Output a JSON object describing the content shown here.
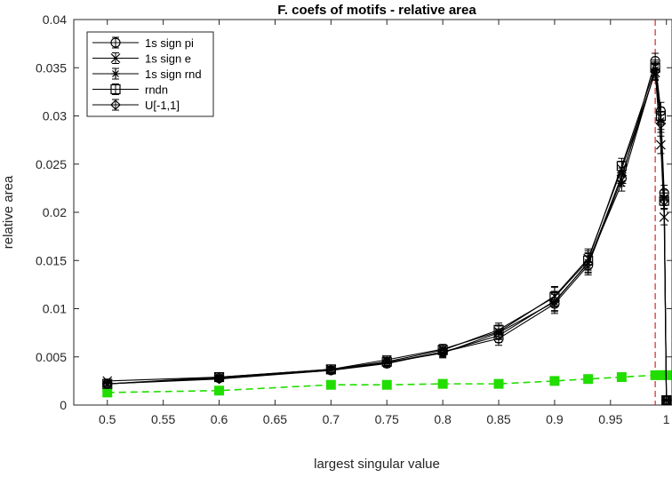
{
  "chart_data": {
    "type": "line",
    "title": "F. coefs of motifs - relative area",
    "xlabel": "largest singular value",
    "ylabel": "relative area",
    "xlim": [
      0.47,
      1.005
    ],
    "ylim": [
      0,
      0.04
    ],
    "xticks": [
      0.5,
      0.55,
      0.6,
      0.65,
      0.7,
      0.75,
      0.8,
      0.85,
      0.9,
      0.95,
      1
    ],
    "xtick_labels": [
      "0.5",
      "0.55",
      "0.6",
      "0.65",
      "0.7",
      "0.75",
      "0.8",
      "0.85",
      "0.9",
      "0.95",
      "1"
    ],
    "yticks": [
      0,
      0.005,
      0.01,
      0.015,
      0.02,
      0.025,
      0.03,
      0.035,
      0.04
    ],
    "ytick_labels": [
      "0",
      "0.005",
      "0.01",
      "0.015",
      "0.02",
      "0.025",
      "0.03",
      "0.035",
      "0.04"
    ],
    "vline": {
      "x": 0.99,
      "color": "#d62728",
      "style": "dashed"
    },
    "legend_position": "top-left",
    "x": [
      0.5,
      0.6,
      0.7,
      0.75,
      0.8,
      0.85,
      0.9,
      0.93,
      0.96,
      0.99,
      0.995,
      0.998,
      1.0
    ],
    "series": [
      {
        "name": "1s sign pi",
        "marker": "circle",
        "color": "#000000",
        "values": [
          0.0022,
          0.0028,
          0.0036,
          0.0043,
          0.0055,
          0.0069,
          0.0105,
          0.0145,
          0.0235,
          0.0357,
          0.0305,
          0.022,
          0.0005
        ],
        "errors": [
          0.0002,
          0.0002,
          0.0003,
          0.0004,
          0.0005,
          0.0007,
          0.001,
          0.001,
          0.0008,
          0.0008,
          0.0009,
          0.0008,
          0.0001
        ]
      },
      {
        "name": "1s sign e",
        "marker": "x",
        "color": "#000000",
        "values": [
          0.0025,
          0.0029,
          0.0037,
          0.0047,
          0.0058,
          0.0076,
          0.0113,
          0.0152,
          0.0245,
          0.0345,
          0.027,
          0.0195,
          0.0005
        ],
        "errors": [
          0.0002,
          0.0002,
          0.0003,
          0.0004,
          0.0005,
          0.0007,
          0.001,
          0.001,
          0.0008,
          0.0008,
          0.0009,
          0.0008,
          0.0001
        ]
      },
      {
        "name": "1s sign rnd",
        "marker": "asterisk",
        "color": "#000000",
        "values": [
          0.0022,
          0.0028,
          0.0037,
          0.0044,
          0.0054,
          0.0075,
          0.0107,
          0.0148,
          0.023,
          0.0348,
          0.0295,
          0.0215,
          0.0005
        ],
        "errors": [
          0.0002,
          0.0002,
          0.0003,
          0.0004,
          0.0005,
          0.0007,
          0.001,
          0.001,
          0.0008,
          0.0008,
          0.0009,
          0.0008,
          0.0001
        ]
      },
      {
        "name": "rndn",
        "marker": "square",
        "color": "#000000",
        "values": [
          0.0022,
          0.0029,
          0.0037,
          0.0045,
          0.0057,
          0.0078,
          0.0112,
          0.015,
          0.0248,
          0.035,
          0.03,
          0.0212,
          0.0005
        ],
        "errors": [
          0.0002,
          0.0002,
          0.0003,
          0.0004,
          0.0005,
          0.0007,
          0.001,
          0.001,
          0.0008,
          0.0008,
          0.0009,
          0.0008,
          0.0001
        ]
      },
      {
        "name": "U[-1,1]",
        "marker": "diamond",
        "color": "#000000",
        "values": [
          0.0022,
          0.0027,
          0.0036,
          0.0044,
          0.0055,
          0.0072,
          0.0108,
          0.0147,
          0.0238,
          0.0346,
          0.0292,
          0.0212,
          0.0005
        ],
        "errors": [
          0.0002,
          0.0002,
          0.0003,
          0.0004,
          0.0005,
          0.0007,
          0.001,
          0.001,
          0.0008,
          0.0008,
          0.0009,
          0.0008,
          0.0001
        ]
      },
      {
        "color": "#22dd00",
        "style": "dashed",
        "marker": "filled-square",
        "in_legend": false,
        "x": [
          0.5,
          0.6,
          0.7,
          0.75,
          0.8,
          0.85,
          0.9,
          0.93,
          0.96,
          0.99,
          0.995,
          1.0
        ],
        "values": [
          0.0013,
          0.0015,
          0.0021,
          0.0021,
          0.0022,
          0.0022,
          0.0025,
          0.0027,
          0.0029,
          0.0031,
          0.0031,
          0.0031
        ]
      }
    ]
  }
}
